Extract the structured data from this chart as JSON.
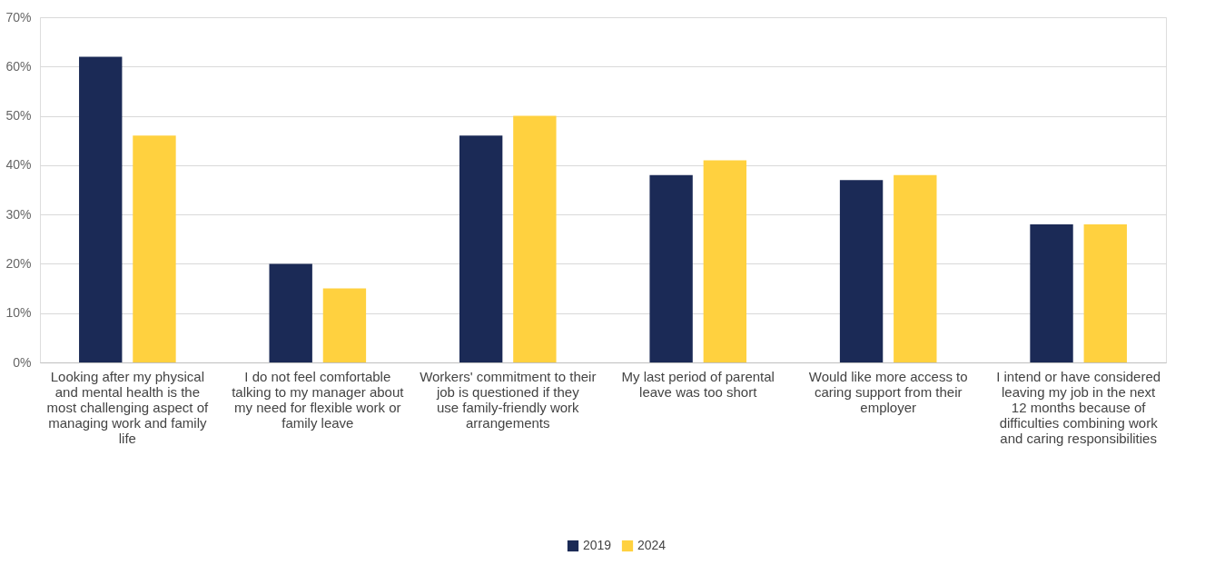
{
  "chart_data": {
    "type": "bar",
    "categories": [
      "Looking after my physical and mental health is the most challenging aspect of managing work and family life",
      "I do not feel comfortable talking to my manager about my need for flexible work or family leave",
      "Workers' commitment to their job is questioned if they use family-friendly work arrangements",
      "My last period of parental leave was too short",
      "Would like more access to caring support from their employer",
      "I intend or have considered leaving my job in the next 12 months because of difficulties combining work and caring responsibilities"
    ],
    "series": [
      {
        "name": "2019",
        "color": "#1b2a56",
        "values": [
          62,
          20,
          46,
          38,
          37,
          28
        ]
      },
      {
        "name": "2024",
        "color": "#ffd13f",
        "values": [
          46,
          15,
          50,
          41,
          38,
          28
        ]
      }
    ],
    "ylim": [
      0,
      70
    ],
    "yticks": [
      {
        "value": 0,
        "label": "0%"
      },
      {
        "value": 10,
        "label": "10%"
      },
      {
        "value": 20,
        "label": "20%"
      },
      {
        "value": 30,
        "label": "30%"
      },
      {
        "value": 40,
        "label": "40%"
      },
      {
        "value": 50,
        "label": "50%"
      },
      {
        "value": 60,
        "label": "60%"
      },
      {
        "value": 70,
        "label": "70%"
      }
    ],
    "grid": "y",
    "legend": "bottom"
  }
}
